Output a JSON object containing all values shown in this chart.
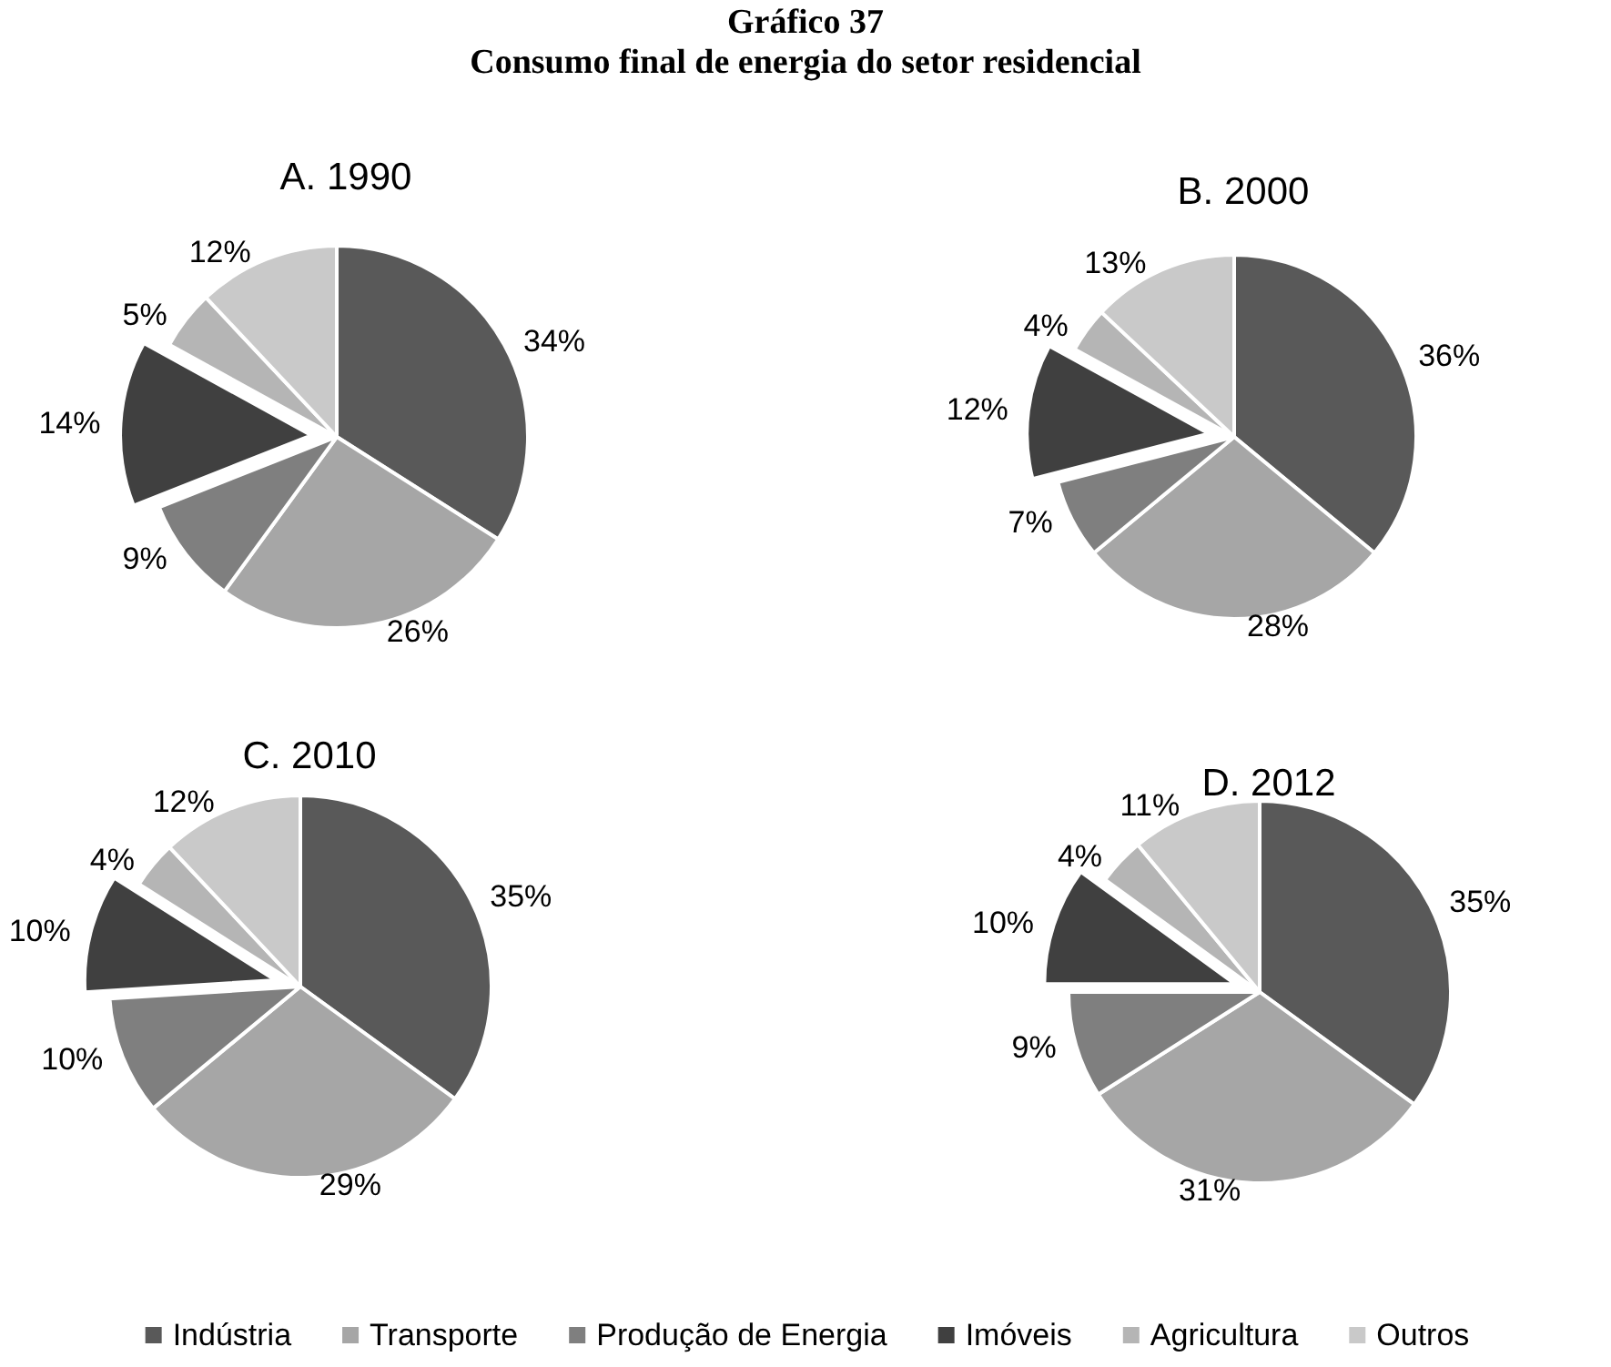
{
  "chart_data": [
    {
      "type": "pie",
      "title": "A. 1990",
      "annotations": [
        "Gráfico 37",
        "Consumo final de energia do setor residencial"
      ],
      "categories": [
        null,
        null,
        null,
        null,
        null,
        null
      ],
      "values": [
        34,
        26,
        9,
        14,
        5,
        12
      ],
      "value_labels": [
        "34%",
        "26%",
        "9%",
        "14%",
        "5%",
        "12%"
      ],
      "colors": [
        "#595959",
        "#a6a6a6",
        "#7f7f7f",
        "#404040",
        "#b5b5b5",
        "#c9c9c9"
      ]
    },
    {
      "type": "pie",
      "title": "B. 2000",
      "categories": [
        null,
        null,
        null,
        null,
        null,
        null
      ],
      "values": [
        36,
        28,
        7,
        12,
        4,
        13
      ],
      "value_labels": [
        "36%",
        "28%",
        "7%",
        "12%",
        "4%",
        "13%"
      ],
      "colors": [
        "#595959",
        "#a6a6a6",
        "#7f7f7f",
        "#404040",
        "#b5b5b5",
        "#c9c9c9"
      ]
    },
    {
      "type": "pie",
      "title": "C. 2010",
      "categories": [
        null,
        null,
        null,
        null,
        null,
        null
      ],
      "values": [
        35,
        29,
        10,
        10,
        4,
        12
      ],
      "value_labels": [
        "35%",
        "29%",
        "10%",
        "10%",
        "4%",
        "12%"
      ],
      "colors": [
        "#595959",
        "#a6a6a6",
        "#7f7f7f",
        "#404040",
        "#b5b5b5",
        "#c9c9c9"
      ]
    },
    {
      "type": "pie",
      "title": "D. 2012",
      "categories": [
        "Indústria",
        "Transporte",
        "Produção de Energia",
        "Imóveis",
        "Agricultura",
        "Outros"
      ],
      "values": [
        35,
        31,
        9,
        10,
        4,
        11
      ],
      "value_labels": [
        "35%",
        "31%",
        "9%",
        "10%",
        "4%",
        "11%"
      ],
      "colors": [
        "#595959",
        "#a6a6a6",
        "#7f7f7f",
        "#404040",
        "#b5b5b5",
        "#c9c9c9"
      ],
      "legend": "bottom"
    }
  ]
}
